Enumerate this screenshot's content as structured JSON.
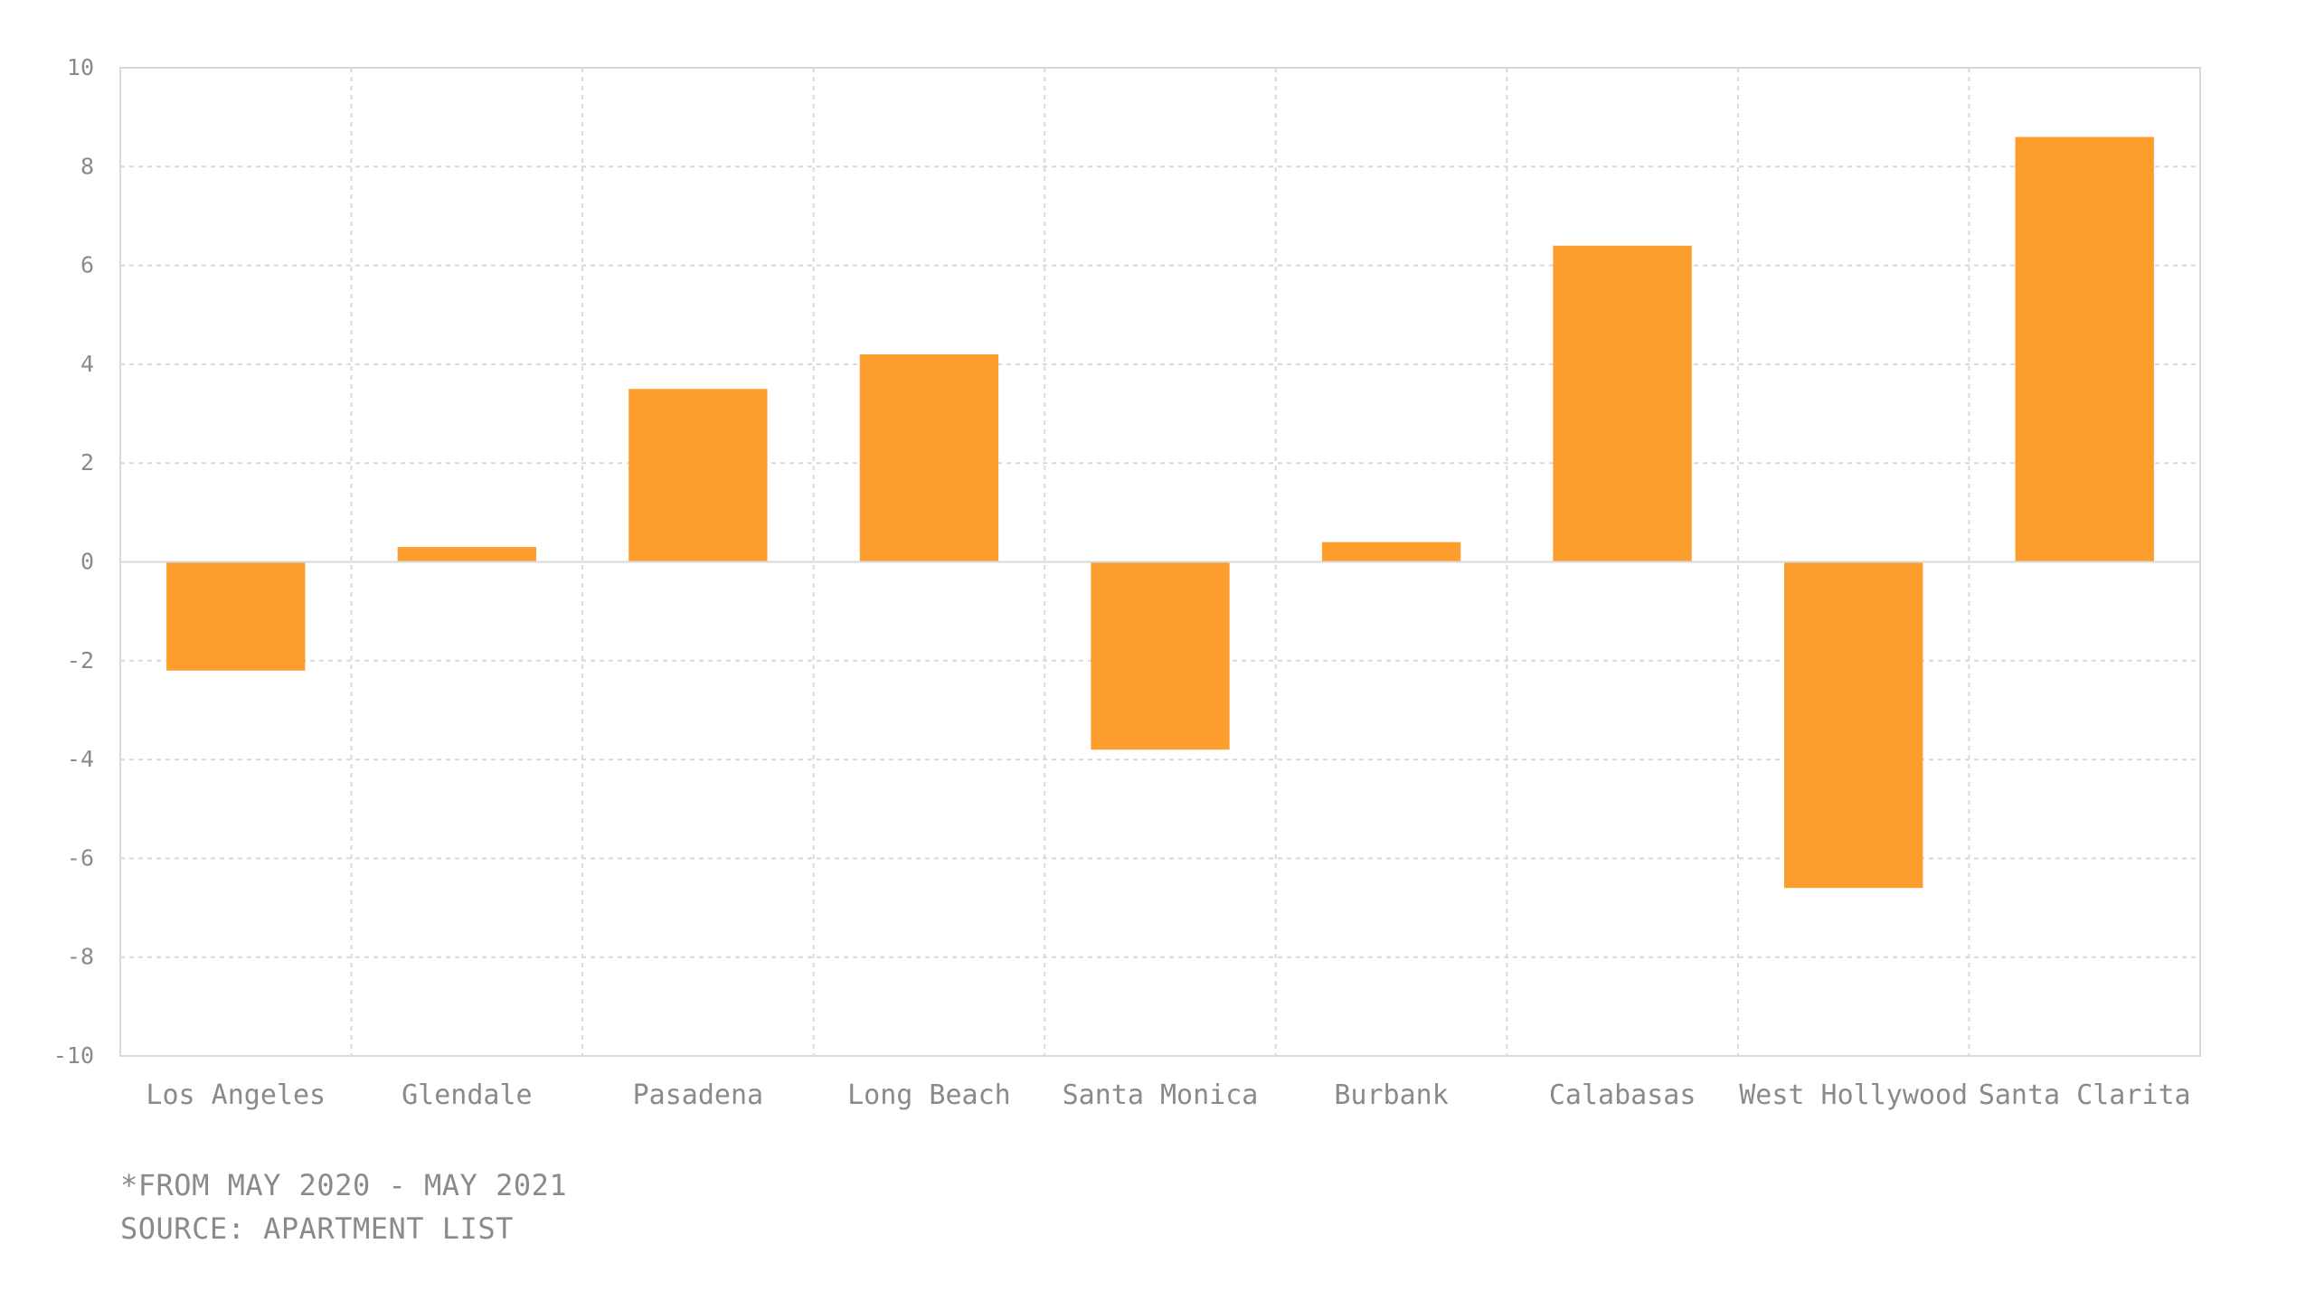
{
  "chart_data": {
    "type": "bar",
    "categories": [
      "Los Angeles",
      "Glendale",
      "Pasadena",
      "Long Beach",
      "Santa Monica",
      "Burbank",
      "Calabasas",
      "West Hollywood",
      "Santa Clarita"
    ],
    "values": [
      -2.2,
      0.3,
      3.5,
      4.2,
      -3.8,
      0.4,
      6.4,
      -6.6,
      8.6
    ],
    "title": "",
    "xlabel": "",
    "ylabel": "",
    "ylim": [
      -10,
      10
    ],
    "yticks": [
      10,
      8,
      6,
      4,
      2,
      0,
      -2,
      -4,
      -6,
      -8,
      -10
    ],
    "grid": true,
    "bar_color": "#fd9d2d",
    "grid_color": "#d9d9d9",
    "axis_color": "#d9d9d9",
    "text_color": "#8a8a8a"
  },
  "notes": {
    "period": "*FROM MAY 2020 - MAY 2021",
    "source": "SOURCE: APARTMENT LIST"
  }
}
